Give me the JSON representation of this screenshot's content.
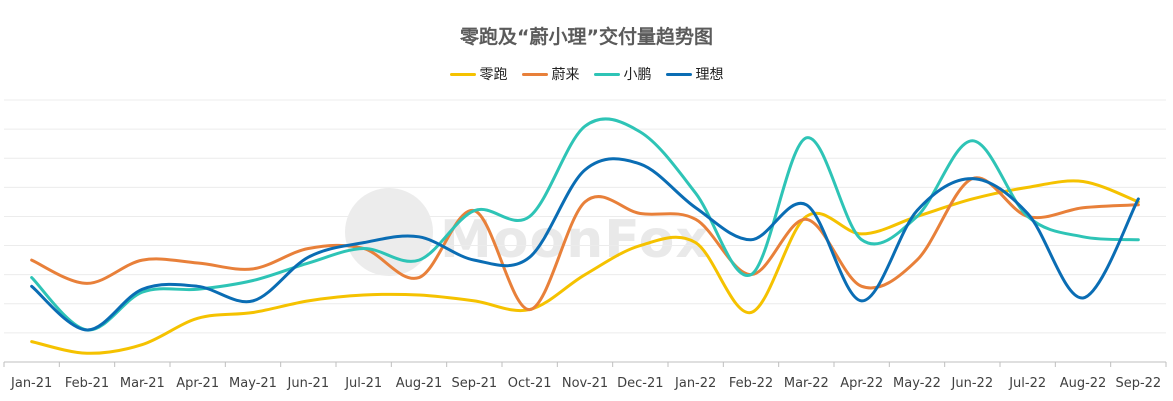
{
  "chart_data": {
    "type": "line",
    "title": "零跑及“蔚小理”交付量趋势图",
    "xlabel": "",
    "ylabel": "",
    "categories": [
      "Jan-21",
      "Feb-21",
      "Mar-21",
      "Apr-21",
      "May-21",
      "Jun-21",
      "Jul-21",
      "Aug-21",
      "Sep-21",
      "Oct-21",
      "Nov-21",
      "Dec-21",
      "Jan-22",
      "Feb-22",
      "Mar-22",
      "Apr-22",
      "May-22",
      "Jun-22",
      "Jul-22",
      "Aug-22",
      "Sep-22"
    ],
    "ylim": [
      0,
      9
    ],
    "grid": true,
    "legend_position": "top-center",
    "watermark": "MoonFox",
    "series": [
      {
        "name": "零跑",
        "color": "#f5c200",
        "values": [
          0.7,
          0.3,
          0.6,
          1.5,
          1.7,
          2.1,
          2.3,
          2.3,
          2.1,
          1.8,
          3.0,
          4.0,
          4.1,
          1.7,
          5.0,
          4.4,
          5.0,
          5.6,
          6.0,
          6.2,
          5.5
        ]
      },
      {
        "name": "蔚来",
        "color": "#e8803a",
        "values": [
          3.5,
          2.7,
          3.5,
          3.4,
          3.2,
          3.9,
          3.9,
          2.9,
          5.2,
          1.8,
          5.5,
          5.1,
          4.9,
          3.0,
          4.9,
          2.6,
          3.5,
          6.3,
          5.0,
          5.3,
          5.4
        ]
      },
      {
        "name": "小鹏",
        "color": "#2ec4b6",
        "values": [
          2.9,
          1.1,
          2.4,
          2.5,
          2.8,
          3.4,
          3.9,
          3.5,
          5.2,
          5.0,
          8.1,
          7.9,
          5.8,
          3.0,
          7.7,
          4.2,
          5.0,
          7.6,
          5.0,
          4.3,
          4.2
        ]
      },
      {
        "name": "理想",
        "color": "#0a6db4",
        "values": [
          2.6,
          1.1,
          2.5,
          2.6,
          2.1,
          3.6,
          4.1,
          4.3,
          3.5,
          3.6,
          6.6,
          6.8,
          5.3,
          4.2,
          5.4,
          2.1,
          5.2,
          6.3,
          5.1,
          2.2,
          5.6
        ]
      }
    ]
  }
}
